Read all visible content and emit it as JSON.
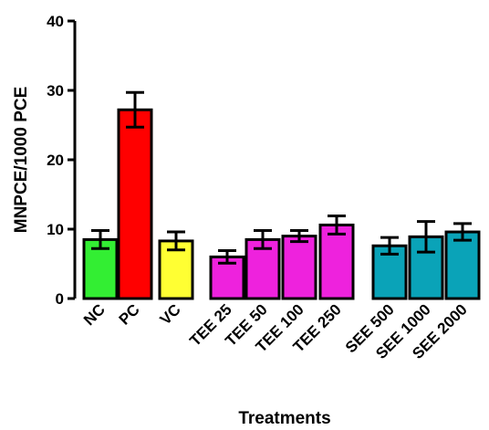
{
  "chart_data": {
    "type": "bar",
    "title": "",
    "xlabel": "Treatments",
    "ylabel": "MNPCE/1000 PCE",
    "ylim": [
      0,
      40
    ],
    "yticks": [
      0,
      10,
      20,
      30,
      40
    ],
    "grid": false,
    "categories": [
      "NC",
      "PC",
      "VC",
      "TEE 25",
      "TEE 50",
      "TEE 100",
      "TEE 250",
      "SEE 500",
      "SEE 1000",
      "SEE 2000"
    ],
    "values": [
      8.5,
      27.2,
      8.3,
      6.0,
      8.5,
      9.0,
      10.6,
      7.6,
      8.9,
      9.6
    ],
    "errors": [
      1.3,
      2.5,
      1.3,
      0.9,
      1.3,
      0.8,
      1.3,
      1.2,
      2.2,
      1.2
    ],
    "colors": [
      "#33ee33",
      "#ff0000",
      "#ffff33",
      "#ee22dd",
      "#ee22dd",
      "#ee22dd",
      "#ee22dd",
      "#0aa3b8",
      "#0aa3b8",
      "#0aa3b8"
    ]
  }
}
